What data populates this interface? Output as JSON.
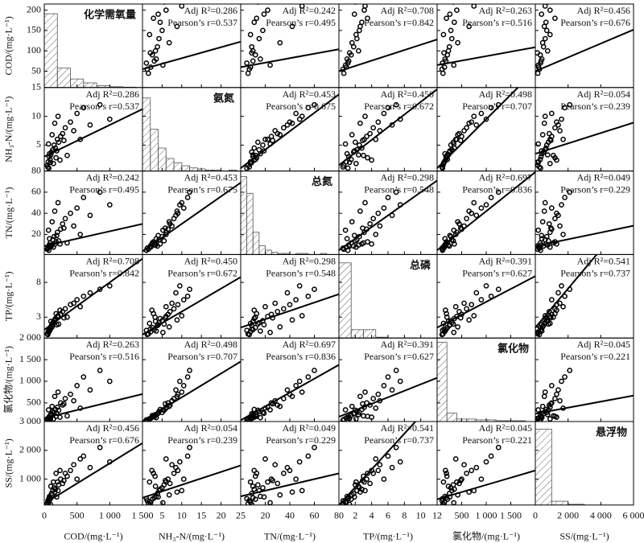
{
  "chart_data": {
    "type": "scatter-matrix",
    "r2_prefix": "Adj R²=",
    "r_prefix": "Pearson’s r=",
    "variables": [
      {
        "label": "COD/(mg·L⁻¹)",
        "diag_title": "化学需氧量",
        "xlim": [
          0,
          1500
        ],
        "xticks": [
          0,
          500,
          {
            "value": 1000,
            "label": "1 000"
          },
          {
            "value": 1500,
            "label": "1 500"
          }
        ],
        "ylim": [
          10,
          215
        ],
        "yticks": [
          50,
          100,
          150,
          200
        ],
        "hist": {
          "bins": [
            0,
            200,
            400,
            600,
            800,
            1000,
            1200,
            1400
          ],
          "counts": [
            190,
            50,
            22,
            12,
            5,
            2,
            1
          ],
          "ylim": [
            0,
            215
          ]
        }
      },
      {
        "label": "NH₃-N/(mg·L⁻¹)",
        "diag_title": "氨氮",
        "xlim": [
          0,
          25
        ],
        "xticks": [
          5,
          10,
          15,
          20,
          25
        ],
        "ylim": [
          0.5,
          15
        ],
        "yticks": [
          5,
          10,
          15
        ],
        "hist": {
          "bins": [
            0,
            2,
            4,
            6,
            8,
            10,
            12,
            14,
            16,
            18,
            20,
            22,
            24
          ],
          "counts": [
            70,
            40,
            22,
            12,
            8,
            5,
            3,
            2,
            1,
            1,
            0,
            1
          ],
          "ylim": [
            0,
            80
          ]
        }
      },
      {
        "label": "TN/(mg·L⁻¹)",
        "diag_title": "总氮",
        "xlim": [
          0,
          80
        ],
        "xticks": [
          20,
          40,
          60,
          80
        ],
        "ylim": [
          1,
          80
        ],
        "yticks": [
          20,
          40,
          60,
          80
        ],
        "hist": {
          "bins": [
            0,
            5,
            10,
            15,
            20,
            25,
            30,
            35,
            40,
            45,
            50,
            55,
            60,
            65,
            70,
            75,
            80
          ],
          "counts": [
            70,
            55,
            20,
            8,
            4,
            2,
            1,
            1,
            0,
            1,
            1,
            0,
            0,
            1,
            0,
            0
          ],
          "ylim": [
            0,
            75
          ]
        }
      },
      {
        "label": "TP/(mg·L⁻¹)",
        "diag_title": "总磷",
        "xlim": [
          0,
          12
        ],
        "xticks": [
          2,
          4,
          6,
          8,
          10,
          12
        ],
        "ylim": [
          0,
          12
        ],
        "yticks": [
          3,
          8
        ],
        "hist": {
          "bins": [
            0,
            1.5,
            3,
            4.5,
            6,
            7.5,
            9,
            10.5,
            12
          ],
          "counts": [
            90,
            10,
            10,
            1,
            0,
            0,
            0,
            0
          ],
          "ylim": [
            0,
            100
          ]
        }
      },
      {
        "label": "氯化物/(mg·L⁻¹)",
        "diag_title": "氯化物",
        "xlim": [
          0,
          2000
        ],
        "xticks": [
          500,
          {
            "value": 1000,
            "label": "1 000"
          },
          {
            "value": 1500,
            "label": "1 500"
          }
        ],
        "ylim": [
          70,
          2000
        ],
        "yticks": [
          500,
          {
            "value": 1000,
            "label": "1 000"
          },
          {
            "value": 1500,
            "label": "1 500"
          },
          {
            "value": 2000,
            "label": "2 000"
          }
        ],
        "hist": {
          "bins": [
            0,
            200,
            400,
            600,
            800,
            1000,
            1200,
            1400,
            1600,
            1800,
            2000
          ],
          "counts": [
            95,
            10,
            3,
            3,
            2,
            2,
            1,
            1,
            1,
            0
          ],
          "ylim": [
            0,
            100
          ]
        }
      },
      {
        "label": "SS/(mg·L⁻¹)",
        "diag_title": "悬浮物",
        "xlim": [
          0,
          6000
        ],
        "xticks": [
          0,
          {
            "value": 2000,
            "label": "2 000"
          },
          {
            "value": 4000,
            "label": "4 000"
          },
          {
            "value": 6000,
            "label": "6 000"
          }
        ],
        "ylim": [
          100,
          3000
        ],
        "yticks": [
          {
            "value": 1000,
            "label": "1 000"
          },
          {
            "value": 2000,
            "label": "2 000"
          },
          {
            "value": 3000,
            "label": "3 000"
          }
        ],
        "hist": {
          "bins": [
            0,
            1000,
            2000,
            3000,
            4000,
            5000,
            6000
          ],
          "counts": [
            100,
            5,
            1,
            0,
            0,
            0
          ],
          "ylim": [
            0,
            110
          ]
        }
      }
    ],
    "correlations": [
      {
        "adj_r2": 0.286,
        "pearson_r": 0.537,
        "fit_upper": [
          55,
          2.7
        ],
        "fit_lower": [
          3,
          0.0055
        ]
      },
      {
        "adj_r2": 0.242,
        "pearson_r": 0.495,
        "fit_upper": [
          60,
          0.55
        ],
        "fit_lower": [
          9,
          0.014
        ]
      },
      {
        "adj_r2": 0.708,
        "pearson_r": 0.842,
        "fit_upper": [
          50,
          6.5
        ],
        "fit_lower": [
          1.2,
          0.0068
        ]
      },
      {
        "adj_r2": 0.263,
        "pearson_r": 0.516,
        "fit_upper": [
          65,
          0.022
        ],
        "fit_lower": [
          150,
          0.37
        ]
      },
      {
        "adj_r2": 0.456,
        "pearson_r": 0.676,
        "fit_upper": [
          50,
          0.017
        ],
        "fit_lower": [
          150,
          1.4
        ]
      },
      {
        "adj_r2": 0.453,
        "pearson_r": 0.675,
        "fit_upper": [
          1,
          0.16
        ],
        "fit_lower": [
          4,
          2.6
        ]
      },
      {
        "adj_r2": 0.45,
        "adj_r2_label": "0.450",
        "pearson_r": 0.672,
        "fit_upper": [
          1.5,
          1.1
        ],
        "fit_lower": [
          0.5,
          0.33
        ]
      },
      {
        "adj_r2": 0.498,
        "pearson_r": 0.707,
        "fit_upper": [
          1,
          0.0085
        ],
        "fit_lower": [
          80,
          55
        ]
      },
      {
        "adj_r2": 0.054,
        "pearson_r": 0.239,
        "fit_upper": [
          3.5,
          0.0009
        ],
        "fit_lower": [
          350,
          45
        ]
      },
      {
        "adj_r2": 0.298,
        "pearson_r": 0.548,
        "fit_upper": [
          5,
          5.5
        ],
        "fit_lower": [
          1.5,
          0.06
        ]
      },
      {
        "adj_r2": 0.697,
        "pearson_r": 0.836,
        "fit_upper": [
          5,
          0.037
        ],
        "fit_lower": [
          100,
          16
        ]
      },
      {
        "adj_r2": 0.049,
        "pearson_r": 0.229,
        "fit_upper": [
          9,
          0.0032
        ],
        "fit_lower": [
          400,
          10
        ]
      },
      {
        "adj_r2": 0.391,
        "pearson_r": 0.627,
        "fit_upper": [
          1.5,
          0.0037
        ],
        "fit_lower": [
          180,
          75
        ]
      },
      {
        "adj_r2": 0.541,
        "pearson_r": 0.737,
        "fit_upper": [
          1.5,
          0.0028
        ],
        "fit_lower": [
          100,
          310
        ]
      },
      {
        "adj_r2": 0.045,
        "pearson_r": 0.221,
        "fit_upper": [
          250,
          0.07
        ],
        "fit_lower": [
          300,
          0.5
        ]
      }
    ],
    "observations": [
      [
        60,
        2.1,
        8,
        0.9,
        150,
        200
      ],
      [
        75,
        3.0,
        10,
        1.2,
        180,
        350
      ],
      [
        90,
        2.5,
        12,
        1.5,
        210,
        300
      ],
      [
        110,
        3.8,
        9,
        1.8,
        250,
        500
      ],
      [
        130,
        4.2,
        15,
        2.2,
        300,
        600
      ],
      [
        150,
        5.0,
        18,
        2.5,
        280,
        700
      ],
      [
        170,
        4.5,
        11,
        2.8,
        350,
        650
      ],
      [
        200,
        6.0,
        22,
        3.1,
        400,
        900
      ],
      [
        220,
        5.5,
        14,
        2.0,
        330,
        800
      ],
      [
        250,
        6.5,
        25,
        3.4,
        500,
        1000
      ],
      [
        280,
        7.0,
        30,
        3.8,
        450,
        850
      ],
      [
        320,
        8.0,
        35,
        4.2,
        600,
        1200
      ],
      [
        350,
        3.2,
        12,
        3.0,
        200,
        1100
      ],
      [
        400,
        9.0,
        40,
        4.8,
        700,
        1300
      ],
      [
        450,
        7.5,
        28,
        5.0,
        550,
        1500
      ],
      [
        500,
        10.5,
        45,
        5.5,
        900,
        1000
      ],
      [
        550,
        6.0,
        20,
        4.5,
        380,
        1700
      ],
      [
        600,
        11.5,
        55,
        6.0,
        1100,
        1800
      ],
      [
        700,
        8.5,
        38,
        6.5,
        800,
        1400
      ],
      [
        850,
        12.0,
        60,
        7.0,
        1250,
        2100
      ],
      [
        1000,
        9.5,
        48,
        7.5,
        1000,
        1600
      ],
      [
        45,
        1.5,
        6,
        0.6,
        120,
        150
      ],
      [
        55,
        1.2,
        7,
        0.5,
        100,
        250
      ],
      [
        80,
        3.5,
        16,
        1.0,
        160,
        400
      ],
      [
        95,
        2.0,
        9,
        1.3,
        140,
        120
      ],
      [
        120,
        6.8,
        32,
        1.6,
        420,
        450
      ],
      [
        140,
        1.8,
        8,
        2.1,
        130,
        900
      ],
      [
        160,
        8.8,
        42,
        2.6,
        650,
        550
      ],
      [
        180,
        2.8,
        13,
        3.5,
        190,
        1200
      ],
      [
        190,
        4.0,
        19,
        1.9,
        260,
        380
      ],
      [
        65,
        5.2,
        24,
        0.8,
        340,
        180
      ],
      [
        100,
        3.3,
        10,
        2.4,
        230,
        750
      ],
      [
        210,
        10.0,
        50,
        3.2,
        750,
        600
      ],
      [
        240,
        2.4,
        11,
        4.0,
        170,
        1300
      ],
      [
        300,
        5.8,
        26,
        2.9,
        480,
        950
      ],
      [
        70,
        1.0,
        5,
        1.1,
        110,
        320
      ]
    ]
  }
}
